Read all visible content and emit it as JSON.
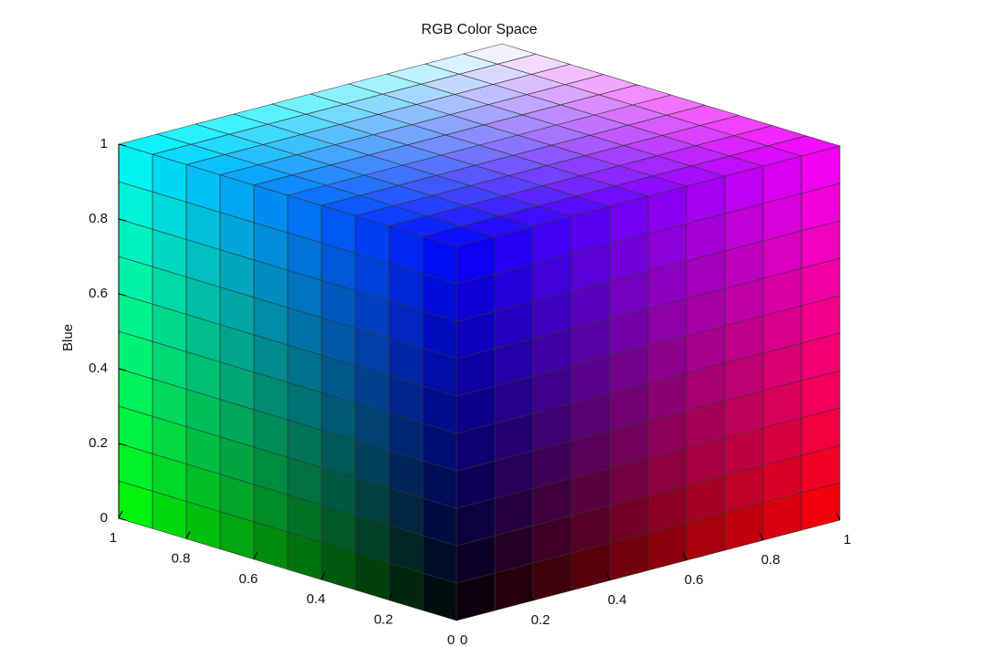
{
  "chart_data": {
    "type": "cube3d",
    "title": "RGB Color Space",
    "zlabel": "Blue",
    "xlim": [
      0,
      1
    ],
    "ylim": [
      0,
      1
    ],
    "zlim": [
      0,
      1
    ],
    "xticks": [
      0,
      0.2,
      0.4,
      0.6,
      0.8,
      1
    ],
    "yticks": [
      0,
      0.2,
      0.4,
      0.6,
      0.8,
      1
    ],
    "zticks": [
      0,
      0.2,
      0.4,
      0.6,
      0.8,
      1
    ],
    "mesh_step": 0.1
  }
}
